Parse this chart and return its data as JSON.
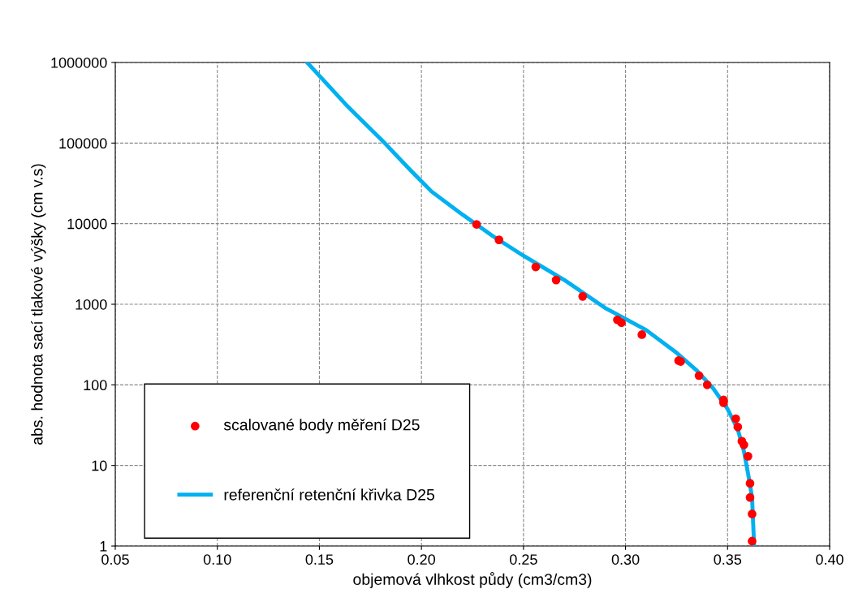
{
  "chart_data": {
    "type": "scatter",
    "xlabel": "objemová vlhkost půdy (cm3/cm3)",
    "ylabel": "abs. hodnota sací tlakové výšky (cm v.s)",
    "log": "y",
    "grid": true,
    "legend": "bottom left",
    "xlim": [
      0.05,
      0.4
    ],
    "xticks": [
      {
        "value": 0.05,
        "label": "0.05"
      },
      {
        "value": 0.1,
        "label": "0.10"
      },
      {
        "value": 0.15,
        "label": "0.15"
      },
      {
        "value": 0.2,
        "label": "0.20"
      },
      {
        "value": 0.25,
        "label": "0.25"
      },
      {
        "value": 0.3,
        "label": "0.30"
      },
      {
        "value": 0.35,
        "label": "0.35"
      },
      {
        "value": 0.4,
        "label": "0.40"
      }
    ],
    "ylim": [
      1,
      1000000
    ],
    "yticks": [
      1,
      10,
      100,
      1000,
      10000,
      100000,
      1000000
    ],
    "series": [
      {
        "name": "scalované body měření D25",
        "color": "#ff0000",
        "marker": "circle",
        "x": [
          0.227,
          0.238,
          0.256,
          0.266,
          0.279,
          0.296,
          0.298,
          0.308,
          0.326,
          0.327,
          0.336,
          0.34,
          0.348,
          0.348,
          0.354,
          0.355,
          0.357,
          0.358,
          0.36,
          0.361,
          0.361,
          0.362,
          0.362
        ],
        "values": [
          9800,
          6300,
          2900,
          2000,
          1250,
          640,
          590,
          420,
          200,
          195,
          130,
          100,
          65,
          60,
          38,
          30,
          20,
          18,
          13,
          6,
          4,
          2.5,
          1.15
        ]
      },
      {
        "name": "referenční retenční křivka D25",
        "type": "line",
        "color": "#00b0f0",
        "line_style": "solid",
        "x": [
          0.144,
          0.163,
          0.182,
          0.195,
          0.205,
          0.22,
          0.235,
          0.25,
          0.27,
          0.29,
          0.31,
          0.325,
          0.335,
          0.343,
          0.35,
          0.355,
          0.358,
          0.36,
          0.362,
          0.3625,
          0.363
        ],
        "values": [
          1000000,
          300000,
          100000,
          45000,
          25000,
          13000,
          7000,
          4000,
          2000,
          900,
          480,
          250,
          150,
          90,
          50,
          28,
          15,
          8,
          4,
          2,
          1
        ]
      }
    ]
  }
}
